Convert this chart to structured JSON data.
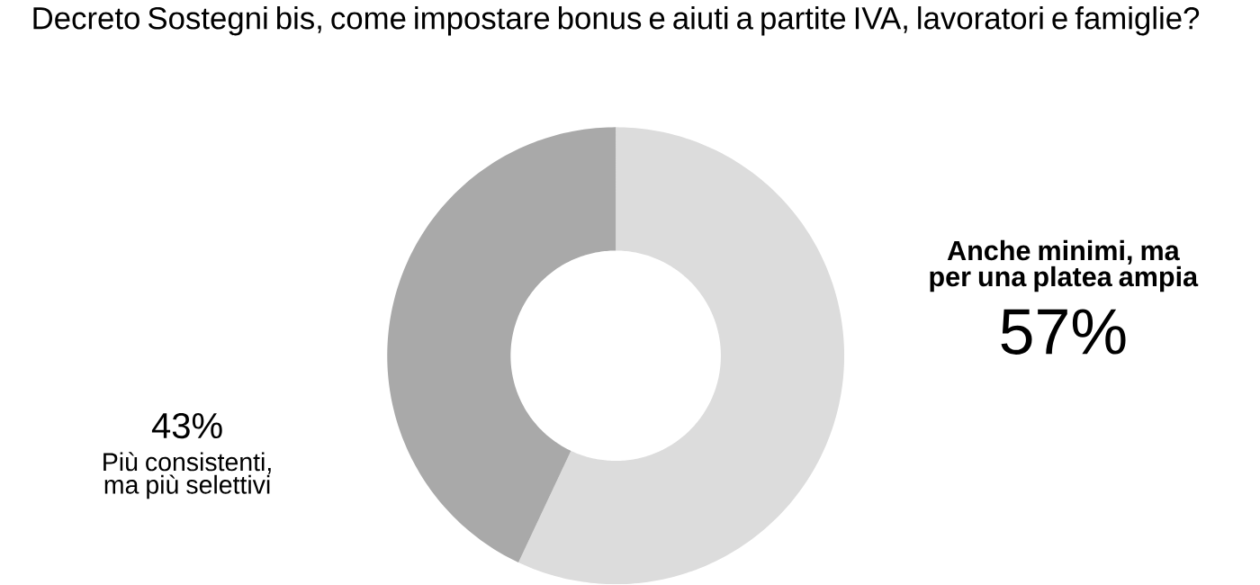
{
  "chart_data": {
    "type": "donut",
    "title": "Decreto Sostegni bis, come impostare bonus e aiuti a partite IVA, lavoratori e famiglie?",
    "categories": [
      "**Anche minimi, ma per una platea ampia**",
      "Più consistenti, ma più selettivi"
    ],
    "values": [
      57,
      43
    ],
    "colors": [
      "#dcdcdc",
      "#a9a9a9"
    ],
    "value_labels": [
      "57%",
      "43%"
    ]
  }
}
